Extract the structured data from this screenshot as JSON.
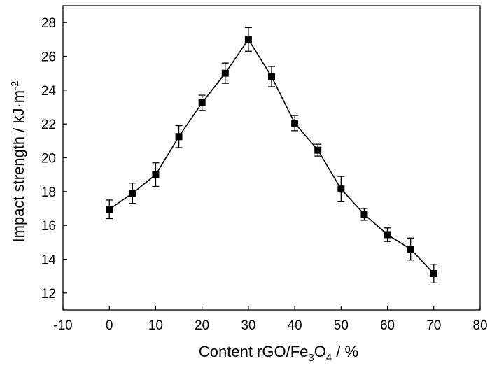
{
  "chart_data": {
    "type": "line",
    "xlabel": "Content rGO/Fe3O4 / %",
    "ylabel": "Impact strength / kJ·m-2",
    "xlim": [
      -10,
      80
    ],
    "ylim": [
      11,
      29
    ],
    "xticks": [
      -10,
      0,
      10,
      20,
      30,
      40,
      50,
      60,
      70,
      80
    ],
    "yticks": [
      12,
      14,
      16,
      18,
      20,
      22,
      24,
      26,
      28
    ],
    "grid": false,
    "legend": "none",
    "marker": "square",
    "color": "#000000",
    "series": [
      {
        "x": [
          0,
          5,
          10,
          15,
          20,
          25,
          30,
          35,
          40,
          45,
          50,
          55,
          60,
          65,
          70
        ],
        "y": [
          16.95,
          17.9,
          19.0,
          21.25,
          23.25,
          25.0,
          27.0,
          24.8,
          22.05,
          20.45,
          18.15,
          16.65,
          15.45,
          14.6,
          13.15
        ],
        "error": [
          0.55,
          0.6,
          0.7,
          0.65,
          0.45,
          0.6,
          0.7,
          0.6,
          0.45,
          0.35,
          0.75,
          0.35,
          0.4,
          0.65,
          0.55
        ]
      }
    ]
  }
}
